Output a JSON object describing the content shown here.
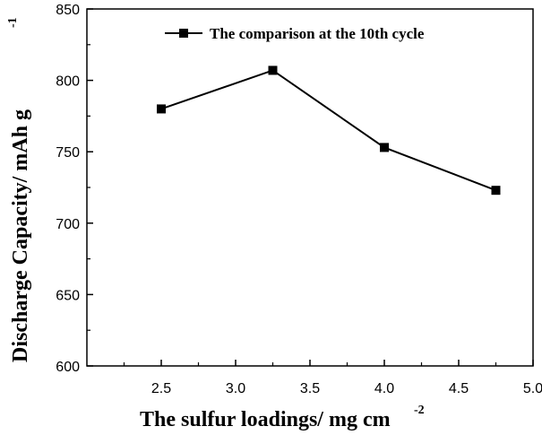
{
  "chart_data": {
    "type": "line",
    "title": "",
    "xlabel": "The sulfur loadings/ mg cm",
    "xlabel_sup": "-2",
    "ylabel": "Discharge Capacity/ mAh g",
    "ylabel_sup": "-1",
    "xlim": [
      2.0,
      5.0
    ],
    "ylim": [
      600,
      850
    ],
    "xticks": [
      "2.5",
      "3.0",
      "3.5",
      "4.0",
      "4.5",
      "5.0"
    ],
    "yticks": [
      "600",
      "650",
      "700",
      "750",
      "800",
      "850"
    ],
    "grid": false,
    "legend_position": "top-right",
    "series": [
      {
        "name": "The comparison at the 10th cycle",
        "marker": "square",
        "color": "#000000",
        "x": [
          2.5,
          3.25,
          4.0,
          4.75
        ],
        "y": [
          780,
          807,
          753,
          723
        ]
      }
    ]
  }
}
